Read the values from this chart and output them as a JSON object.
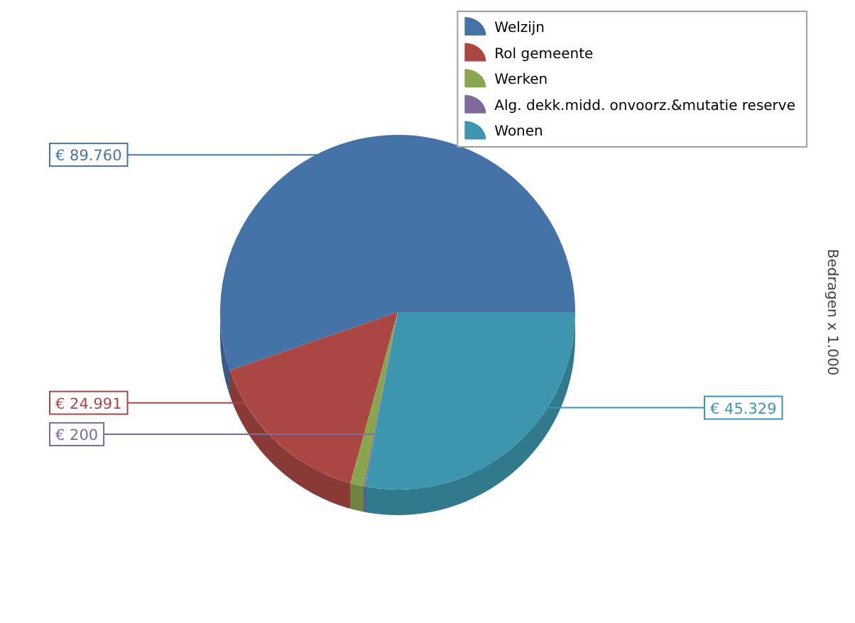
{
  "chart_data": {
    "type": "pie",
    "categories": [
      "Welzijn",
      "Rol gemeente",
      "Werken",
      "Alg. dekk.midd. onvoorz.&mutatie reserve",
      "Wonen"
    ],
    "values": [
      89760,
      24991,
      2000,
      200,
      45329
    ],
    "colors": [
      "#4572a7",
      "#aa4643",
      "#89a54e",
      "#80699b",
      "#3d96ae"
    ],
    "value_labels": [
      "€ 89.760",
      "€ 24.991",
      null,
      "€ 200",
      "€ 45.329"
    ],
    "legend": "top right",
    "annotations": [
      "Bedragen x 1.000"
    ]
  }
}
